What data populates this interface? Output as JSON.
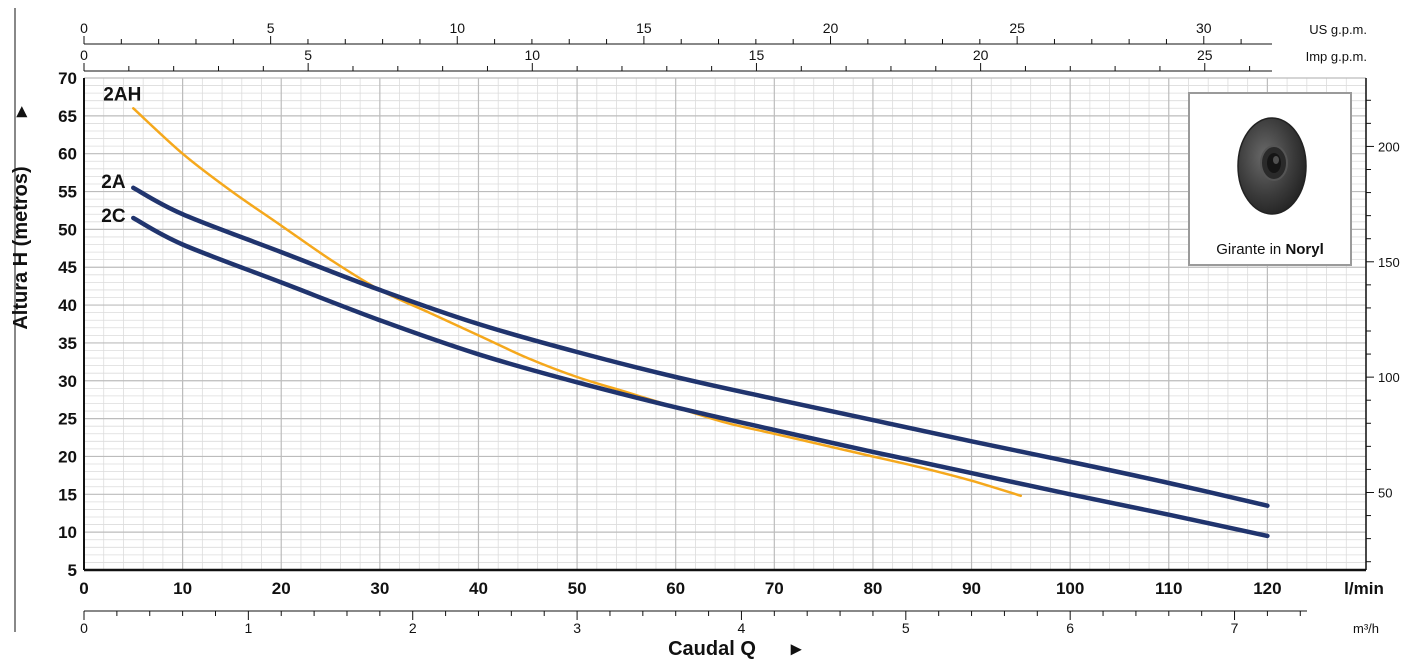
{
  "chart_data": {
    "type": "line",
    "xlabel": "Caudal Q",
    "ylabel": "Altura H (metros)",
    "x_unit": "l/min",
    "xlim": [
      0,
      130
    ],
    "ylim": [
      5,
      70
    ],
    "x_ticks": [
      0,
      10,
      20,
      30,
      40,
      50,
      60,
      70,
      80,
      90,
      100,
      110,
      120
    ],
    "y_ticks": [
      5,
      10,
      15,
      20,
      25,
      30,
      35,
      40,
      45,
      50,
      55,
      60,
      65,
      70
    ],
    "grid": true,
    "series": [
      {
        "name": "2AH",
        "color": "#f5a81c",
        "x": [
          5,
          10,
          15,
          20,
          25,
          30,
          35,
          40,
          45,
          50,
          55,
          60,
          65,
          70,
          75,
          80,
          85,
          90,
          95
        ],
        "y": [
          66,
          60,
          55,
          50.5,
          46,
          42,
          39,
          36,
          33,
          30.5,
          28.5,
          26.5,
          24.5,
          23,
          21.5,
          20,
          18.5,
          16.8,
          14.8
        ]
      },
      {
        "name": "2A",
        "color": "#20346e",
        "x": [
          5,
          10,
          20,
          30,
          40,
          50,
          60,
          70,
          80,
          90,
          100,
          110,
          120
        ],
        "y": [
          55.5,
          52,
          47,
          42,
          37.5,
          33.8,
          30.5,
          27.6,
          24.8,
          22,
          19.3,
          16.5,
          13.5
        ]
      },
      {
        "name": "2C",
        "color": "#20346e",
        "x": [
          5,
          10,
          20,
          30,
          40,
          50,
          60,
          70,
          80,
          90,
          100,
          110,
          120
        ],
        "y": [
          51.5,
          48,
          43,
          38,
          33.5,
          29.8,
          26.5,
          23.5,
          20.6,
          17.8,
          15,
          12.3,
          9.5
        ]
      }
    ],
    "top_axes": [
      {
        "unit": "US g.p.m.",
        "lpm_per_unit": 3.785,
        "ticks": [
          0,
          5,
          10,
          15,
          20,
          25,
          30
        ]
      },
      {
        "unit": "Imp g.p.m.",
        "lpm_per_unit": 4.546,
        "ticks": [
          0,
          5,
          10,
          15,
          20,
          25
        ]
      }
    ],
    "bottom_axis": {
      "unit": "m³/h",
      "lpm_per_unit": 16.667,
      "ticks": [
        0,
        1,
        2,
        3,
        4,
        5,
        6,
        7
      ]
    },
    "right_axis": {
      "ticks": [
        50,
        100,
        150,
        200
      ],
      "metres_per_unit": 0.3048
    }
  },
  "inset": {
    "caption_prefix": "Girante in",
    "caption_bold": "Noryl",
    "impeller_color": "#3a3a3a"
  }
}
